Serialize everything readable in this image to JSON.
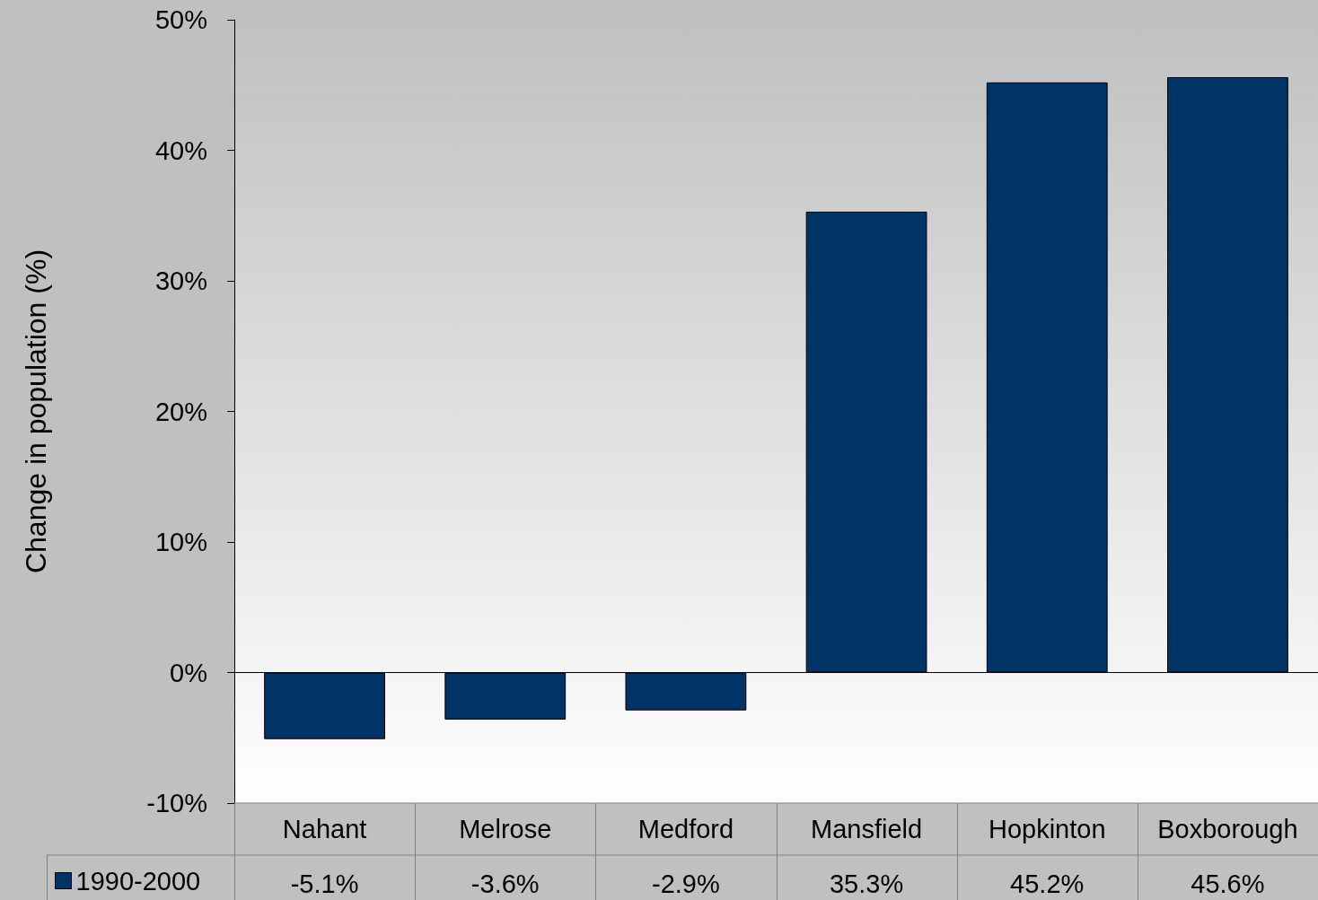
{
  "chart_data": {
    "type": "bar",
    "ylabel": "Change in population (%)",
    "categories": [
      "Nahant",
      "Melrose",
      "Medford",
      "Mansfield",
      "Hopkinton",
      "Boxborough"
    ],
    "series": [
      {
        "name": "1990-2000",
        "color": "#003366",
        "values": [
          -5.1,
          -3.6,
          -2.9,
          35.3,
          45.2,
          45.6
        ],
        "value_labels": [
          "-5.1%",
          "-3.6%",
          "-2.9%",
          "35.3%",
          "45.2%",
          "45.6%"
        ]
      }
    ],
    "ylim": [
      -10,
      50
    ],
    "yticks": [
      {
        "value": -10,
        "label": "-10%"
      },
      {
        "value": 0,
        "label": "0%"
      },
      {
        "value": 10,
        "label": "10%"
      },
      {
        "value": 20,
        "label": "20%"
      },
      {
        "value": 30,
        "label": "30%"
      },
      {
        "value": 40,
        "label": "40%"
      },
      {
        "value": 50,
        "label": "50%"
      }
    ],
    "legend": "bottom left"
  }
}
